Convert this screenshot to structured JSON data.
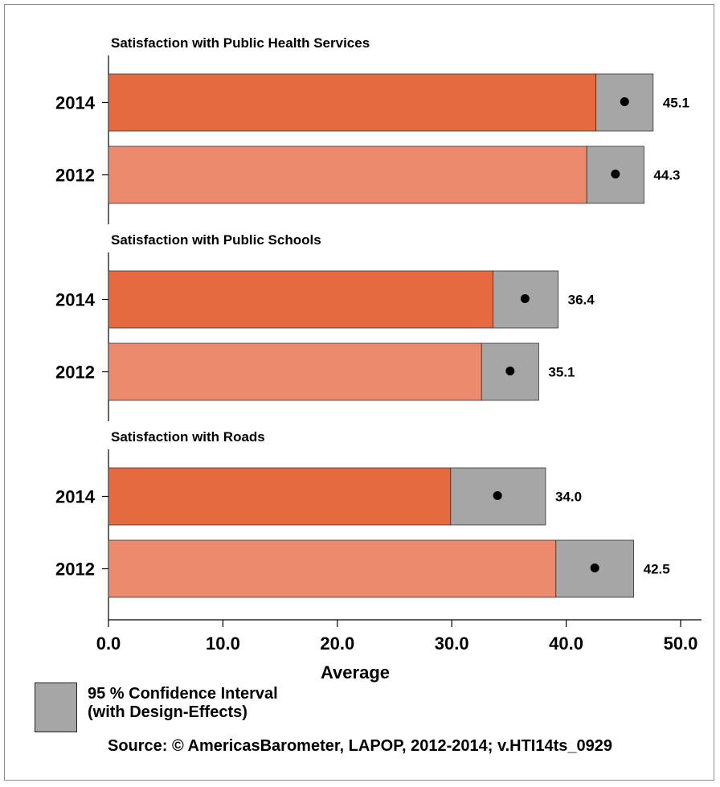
{
  "chart_data": {
    "type": "bar",
    "orientation": "horizontal",
    "xlabel": "Average",
    "xlim": [
      0,
      50
    ],
    "xticks": [
      "0.0",
      "10.0",
      "20.0",
      "30.0",
      "40.0",
      "50.0"
    ],
    "colors": {
      "2014": "#e66a40",
      "2012": "#ec8a6d",
      "ci": "#a6a6a6"
    },
    "panels": [
      {
        "title": "Satisfaction with Public Health Services",
        "bars": [
          {
            "year": "2014",
            "value": 45.1,
            "label": "45.1",
            "ci": [
              42.6,
              47.6
            ]
          },
          {
            "year": "2012",
            "value": 44.3,
            "label": "44.3",
            "ci": [
              41.8,
              46.8
            ]
          }
        ]
      },
      {
        "title": "Satisfaction with Public Schools",
        "bars": [
          {
            "year": "2014",
            "value": 36.4,
            "label": "36.4",
            "ci": [
              33.6,
              39.3
            ]
          },
          {
            "year": "2012",
            "value": 35.1,
            "label": "35.1",
            "ci": [
              32.6,
              37.6
            ]
          }
        ]
      },
      {
        "title": "Satisfaction with Roads",
        "bars": [
          {
            "year": "2014",
            "value": 34.0,
            "label": "34.0",
            "ci": [
              29.9,
              38.2
            ]
          },
          {
            "year": "2012",
            "value": 42.5,
            "label": "42.5",
            "ci": [
              39.1,
              45.9
            ]
          }
        ]
      }
    ]
  },
  "legend": {
    "line1": "95 % Confidence Interval",
    "line2": "(with Design-Effects)"
  },
  "source": "Source: © AmericasBarometer, LAPOP, 2012-2014; v.HTI14ts_0929"
}
